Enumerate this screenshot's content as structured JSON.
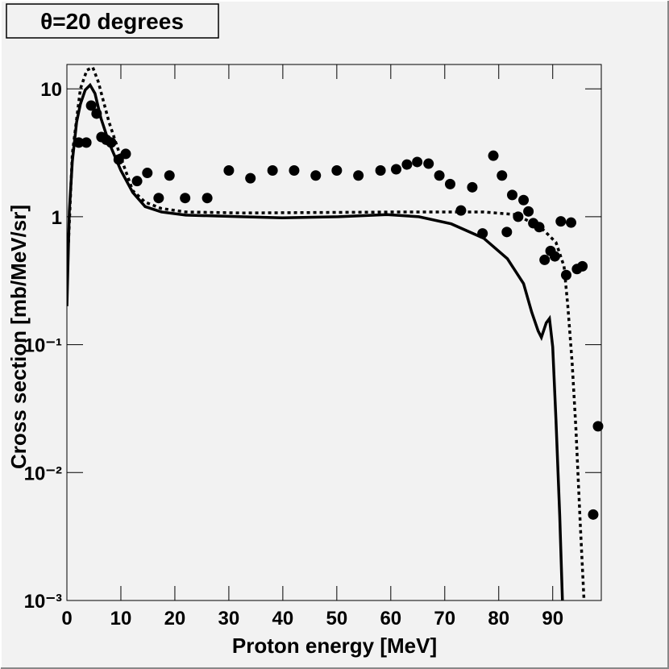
{
  "chart_data": {
    "type": "scatter",
    "title": "θ=20 degrees",
    "x_label": "Proton energy [MeV]",
    "y_label": "Cross section [mb/MeV/sr]",
    "xlim": [
      0,
      99
    ],
    "ylim": [
      0.001,
      15.5
    ],
    "log_y": true,
    "xticks": [
      0,
      10,
      20,
      30,
      40,
      50,
      60,
      70,
      80,
      90
    ],
    "yticks": [
      {
        "value": 0.001,
        "label": "10⁻³"
      },
      {
        "value": 0.01,
        "label": "10⁻²"
      },
      {
        "value": 0.1,
        "label": "10⁻¹"
      },
      1,
      10
    ],
    "series": [
      {
        "type": "scatter",
        "color": "#000000",
        "x": [
          2.2,
          3.6,
          4.5,
          5.5,
          6.4,
          7.3,
          8.2,
          9.6,
          10.9,
          13.0,
          14.9,
          17.0,
          19.0,
          21.9,
          26.0,
          30.0,
          34.0,
          38.1,
          42.1,
          46.1,
          50.0,
          54.0,
          58.1,
          61.0,
          63.0,
          64.9,
          67.0,
          69.0,
          71.0,
          73.0,
          75.1,
          77.0,
          79.0,
          80.6,
          81.5,
          82.5,
          83.6,
          84.6,
          85.5,
          86.4,
          87.5,
          88.5,
          89.6,
          90.4,
          91.5,
          92.5,
          93.4,
          94.5,
          95.5,
          97.5,
          98.4
        ],
        "values": [
          3.8,
          3.8,
          7.4,
          6.4,
          4.2,
          4.0,
          3.8,
          2.8,
          3.1,
          1.9,
          2.2,
          1.4,
          2.1,
          1.4,
          1.4,
          2.3,
          2.0,
          2.3,
          2.3,
          2.1,
          2.3,
          2.1,
          2.3,
          2.35,
          2.56,
          2.68,
          2.6,
          2.1,
          1.8,
          1.12,
          1.7,
          0.74,
          3.0,
          2.1,
          0.76,
          1.48,
          1.0,
          1.35,
          1.1,
          0.89,
          0.83,
          0.46,
          0.54,
          0.49,
          0.92,
          0.35,
          0.9,
          0.39,
          0.41,
          0.0047,
          0.023
        ]
      },
      {
        "type": "line",
        "style": "solid",
        "color": "#000000",
        "x": [
          0,
          0.45,
          1.0,
          1.8,
          2.5,
          3.4,
          4.3,
          5.2,
          6.3,
          7.8,
          10,
          12.2,
          14.5,
          17.5,
          22,
          32.4,
          39.9,
          50.3,
          59.3,
          65.2,
          71.2,
          77.2,
          81.6,
          84.6,
          86.1,
          87.3,
          87.9,
          88.8,
          89.4,
          90.0,
          90.6,
          91.3,
          91.8
        ],
        "values": [
          0.2,
          1.1,
          2.7,
          5.5,
          7.6,
          9.8,
          10.7,
          9.2,
          5.9,
          3.8,
          2.3,
          1.55,
          1.2,
          1.09,
          1.03,
          1.0,
          0.98,
          1.0,
          1.04,
          1.0,
          0.88,
          0.68,
          0.47,
          0.3,
          0.18,
          0.128,
          0.114,
          0.148,
          0.16,
          0.096,
          0.026,
          0.0046,
          0.001
        ]
      },
      {
        "type": "line",
        "style": "dashed",
        "color": "#000000",
        "x": [
          0.3,
          1.0,
          2.5,
          3.7,
          4.8,
          5.8,
          7.8,
          10,
          12.2,
          14.5,
          17.5,
          22,
          32.4,
          62.2,
          77.2,
          83.1,
          86.1,
          88.4,
          90.6,
          92.1,
          92.8,
          93.6,
          94.3,
          95.1,
          95.8
        ],
        "values": [
          0.63,
          3.1,
          10,
          14,
          14.7,
          11.4,
          5.5,
          2.9,
          1.6,
          1.3,
          1.16,
          1.09,
          1.07,
          1.09,
          1.09,
          1.04,
          0.9,
          0.78,
          0.63,
          0.41,
          0.2,
          0.072,
          0.022,
          0.004,
          0.001
        ]
      }
    ]
  }
}
